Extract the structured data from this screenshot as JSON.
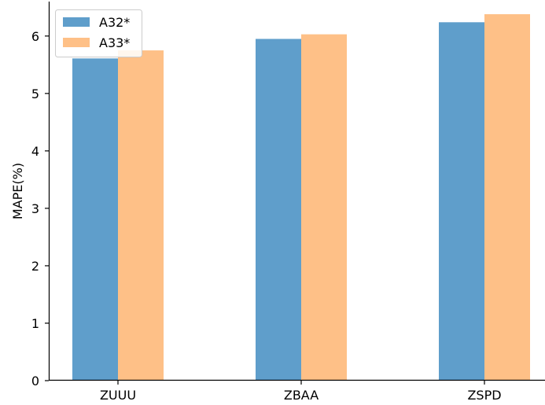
{
  "chart_data": {
    "type": "bar",
    "title": "",
    "xlabel": "",
    "ylabel": "MAPE(%)",
    "categories": [
      "ZUUU",
      "ZBAA",
      "ZSPD"
    ],
    "series": [
      {
        "name": "A32*",
        "color": "#5f9ecb",
        "values": [
          5.61,
          5.95,
          6.24
        ]
      },
      {
        "name": "A33*",
        "color": "#fec087",
        "values": [
          5.75,
          6.03,
          6.38
        ]
      }
    ],
    "ylim": [
      0,
      6.6
    ],
    "yticks": [
      "0",
      "1",
      "2",
      "3",
      "4",
      "5",
      "6"
    ],
    "legend_position": "top-left",
    "grid": false
  }
}
